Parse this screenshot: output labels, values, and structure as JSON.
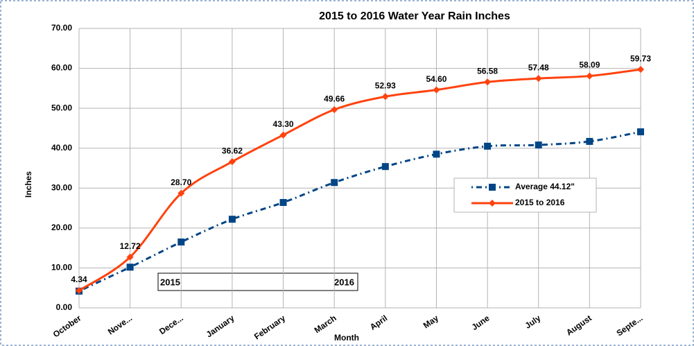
{
  "chart_data": {
    "type": "line",
    "title": "2015 to 2016 Water Year Rain Inches",
    "y_label": "Inches",
    "x_label": "Month",
    "categories": [
      "October",
      "Nove...",
      "Dece...",
      "January",
      "February",
      "March",
      "April",
      "May",
      "June",
      "July",
      "August",
      "Septe..."
    ],
    "series": [
      {
        "name": "Average 44.12\"",
        "color": "#004586",
        "marker": "square",
        "dash": "dot-dash",
        "values": [
          4.2,
          10.2,
          16.5,
          22.2,
          26.4,
          31.4,
          35.4,
          38.5,
          40.5,
          40.8,
          41.7,
          44.1
        ]
      },
      {
        "name": "2015 to 2016",
        "color": "#ff420e",
        "marker": "diamond",
        "dash": "solid",
        "values": [
          4.34,
          12.72,
          28.7,
          36.62,
          43.3,
          49.66,
          52.93,
          54.6,
          56.58,
          57.48,
          58.09,
          59.73
        ],
        "value_labels": [
          "4.34",
          "12.72",
          "28.70",
          "36.62",
          "43.30",
          "49.66",
          "52.93",
          "54.60",
          "56.58",
          "57.48",
          "58.09",
          "59.73"
        ]
      }
    ],
    "ylim": [
      0,
      70
    ],
    "yticks": [
      {
        "value": 0,
        "label": "0.00"
      },
      {
        "value": 10,
        "label": "10.00"
      },
      {
        "value": 20,
        "label": "20.00"
      },
      {
        "value": 30,
        "label": "30.00"
      },
      {
        "value": 40,
        "label": "40.00"
      },
      {
        "value": 50,
        "label": "50.00"
      },
      {
        "value": 60,
        "label": "60.00"
      },
      {
        "value": 70,
        "label": "70.00"
      }
    ],
    "grid": true,
    "legend": "right",
    "annotations": [
      "2015",
      "2016"
    ]
  }
}
